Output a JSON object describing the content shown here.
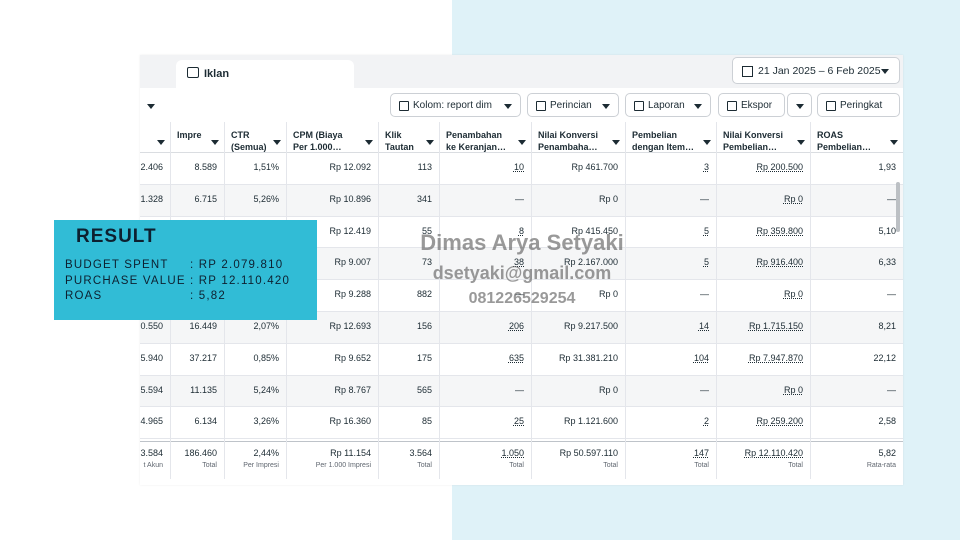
{
  "tab": "Iklan",
  "date_range": "21 Jan 2025 – 6 Feb 2025",
  "toolbar": [
    "Kolom: report dim",
    "Perincian",
    "Laporan",
    "Ekspor",
    "Peringkat"
  ],
  "table": {
    "headers": [
      "Impre",
      "CTR\n(Semua)",
      "CPM (Biaya\nPer 1.000…",
      "Klik\nTautan",
      "Penambahan\nke Keranjan…",
      "Nilai Konversi\nPenambaha…",
      "Pembelian\ndengan Item…",
      "Nilai Konversi\nPembelian…",
      "ROAS\nPembelian…"
    ],
    "rows": [
      [
        "2.406",
        "8.589",
        "1,51%",
        "Rp 12.092",
        "113",
        "10",
        "Rp 461.700",
        "3",
        "Rp 200.500",
        "1,93"
      ],
      [
        "1.328",
        "6.715",
        "5,26%",
        "Rp 10.896",
        "341",
        "—",
        "Rp 0",
        "—",
        "Rp 0",
        "—"
      ],
      [
        null,
        null,
        null,
        "Rp 12.419",
        "55",
        "8",
        "Rp 415.450",
        "5",
        "Rp 359.800",
        "5,10"
      ],
      [
        null,
        null,
        null,
        "Rp 9.007",
        "73",
        "38",
        "Rp 2.167.000",
        "5",
        "Rp 916.400",
        "6,33"
      ],
      [
        null,
        null,
        null,
        "Rp 9.288",
        "882",
        "—",
        "Rp 0",
        "—",
        "Rp 0",
        "—"
      ],
      [
        "0.550",
        "16.449",
        "2,07%",
        "Rp 12.693",
        "156",
        "206",
        "Rp 9.217.500",
        "14",
        "Rp 1.715.150",
        "8,21"
      ],
      [
        "5.940",
        "37.217",
        "0,85%",
        "Rp 9.652",
        "175",
        "635",
        "Rp 31.381.210",
        "104",
        "Rp 7.947.870",
        "22,12"
      ],
      [
        "5.594",
        "11.135",
        "5,24%",
        "Rp 8.767",
        "565",
        "—",
        "Rp 0",
        "—",
        "Rp 0",
        "—"
      ],
      [
        "4.965",
        "6.134",
        "3,26%",
        "Rp 16.360",
        "85",
        "25",
        "Rp 1.121.600",
        "2",
        "Rp 259.200",
        "2,58"
      ]
    ],
    "total": {
      "values": [
        "3.584",
        "186.460",
        "2,44%",
        "Rp 11.154",
        "3.564",
        "1.050",
        "Rp 50.597.110",
        "147",
        "Rp 12.110.420",
        "5,82"
      ],
      "notes": [
        "t Akun",
        "Total",
        "Per Impresi",
        "Per 1.000 Impresi",
        "Total",
        "Total",
        "Total",
        "Total",
        "Total",
        "Rata-rata"
      ]
    }
  },
  "result": {
    "title": "RESULT",
    "items": [
      {
        "label": "BUDGET SPENT",
        "value": ": RP 2.079.810"
      },
      {
        "label": "PURCHASE VALUE",
        "value": ": RP 12.110.420"
      },
      {
        "label": "ROAS",
        "value": ": 5,82"
      }
    ]
  },
  "watermark": {
    "name": "Dimas Arya Setyaki",
    "email": "dsetyaki@gmail.com",
    "phone": "081226529254"
  }
}
